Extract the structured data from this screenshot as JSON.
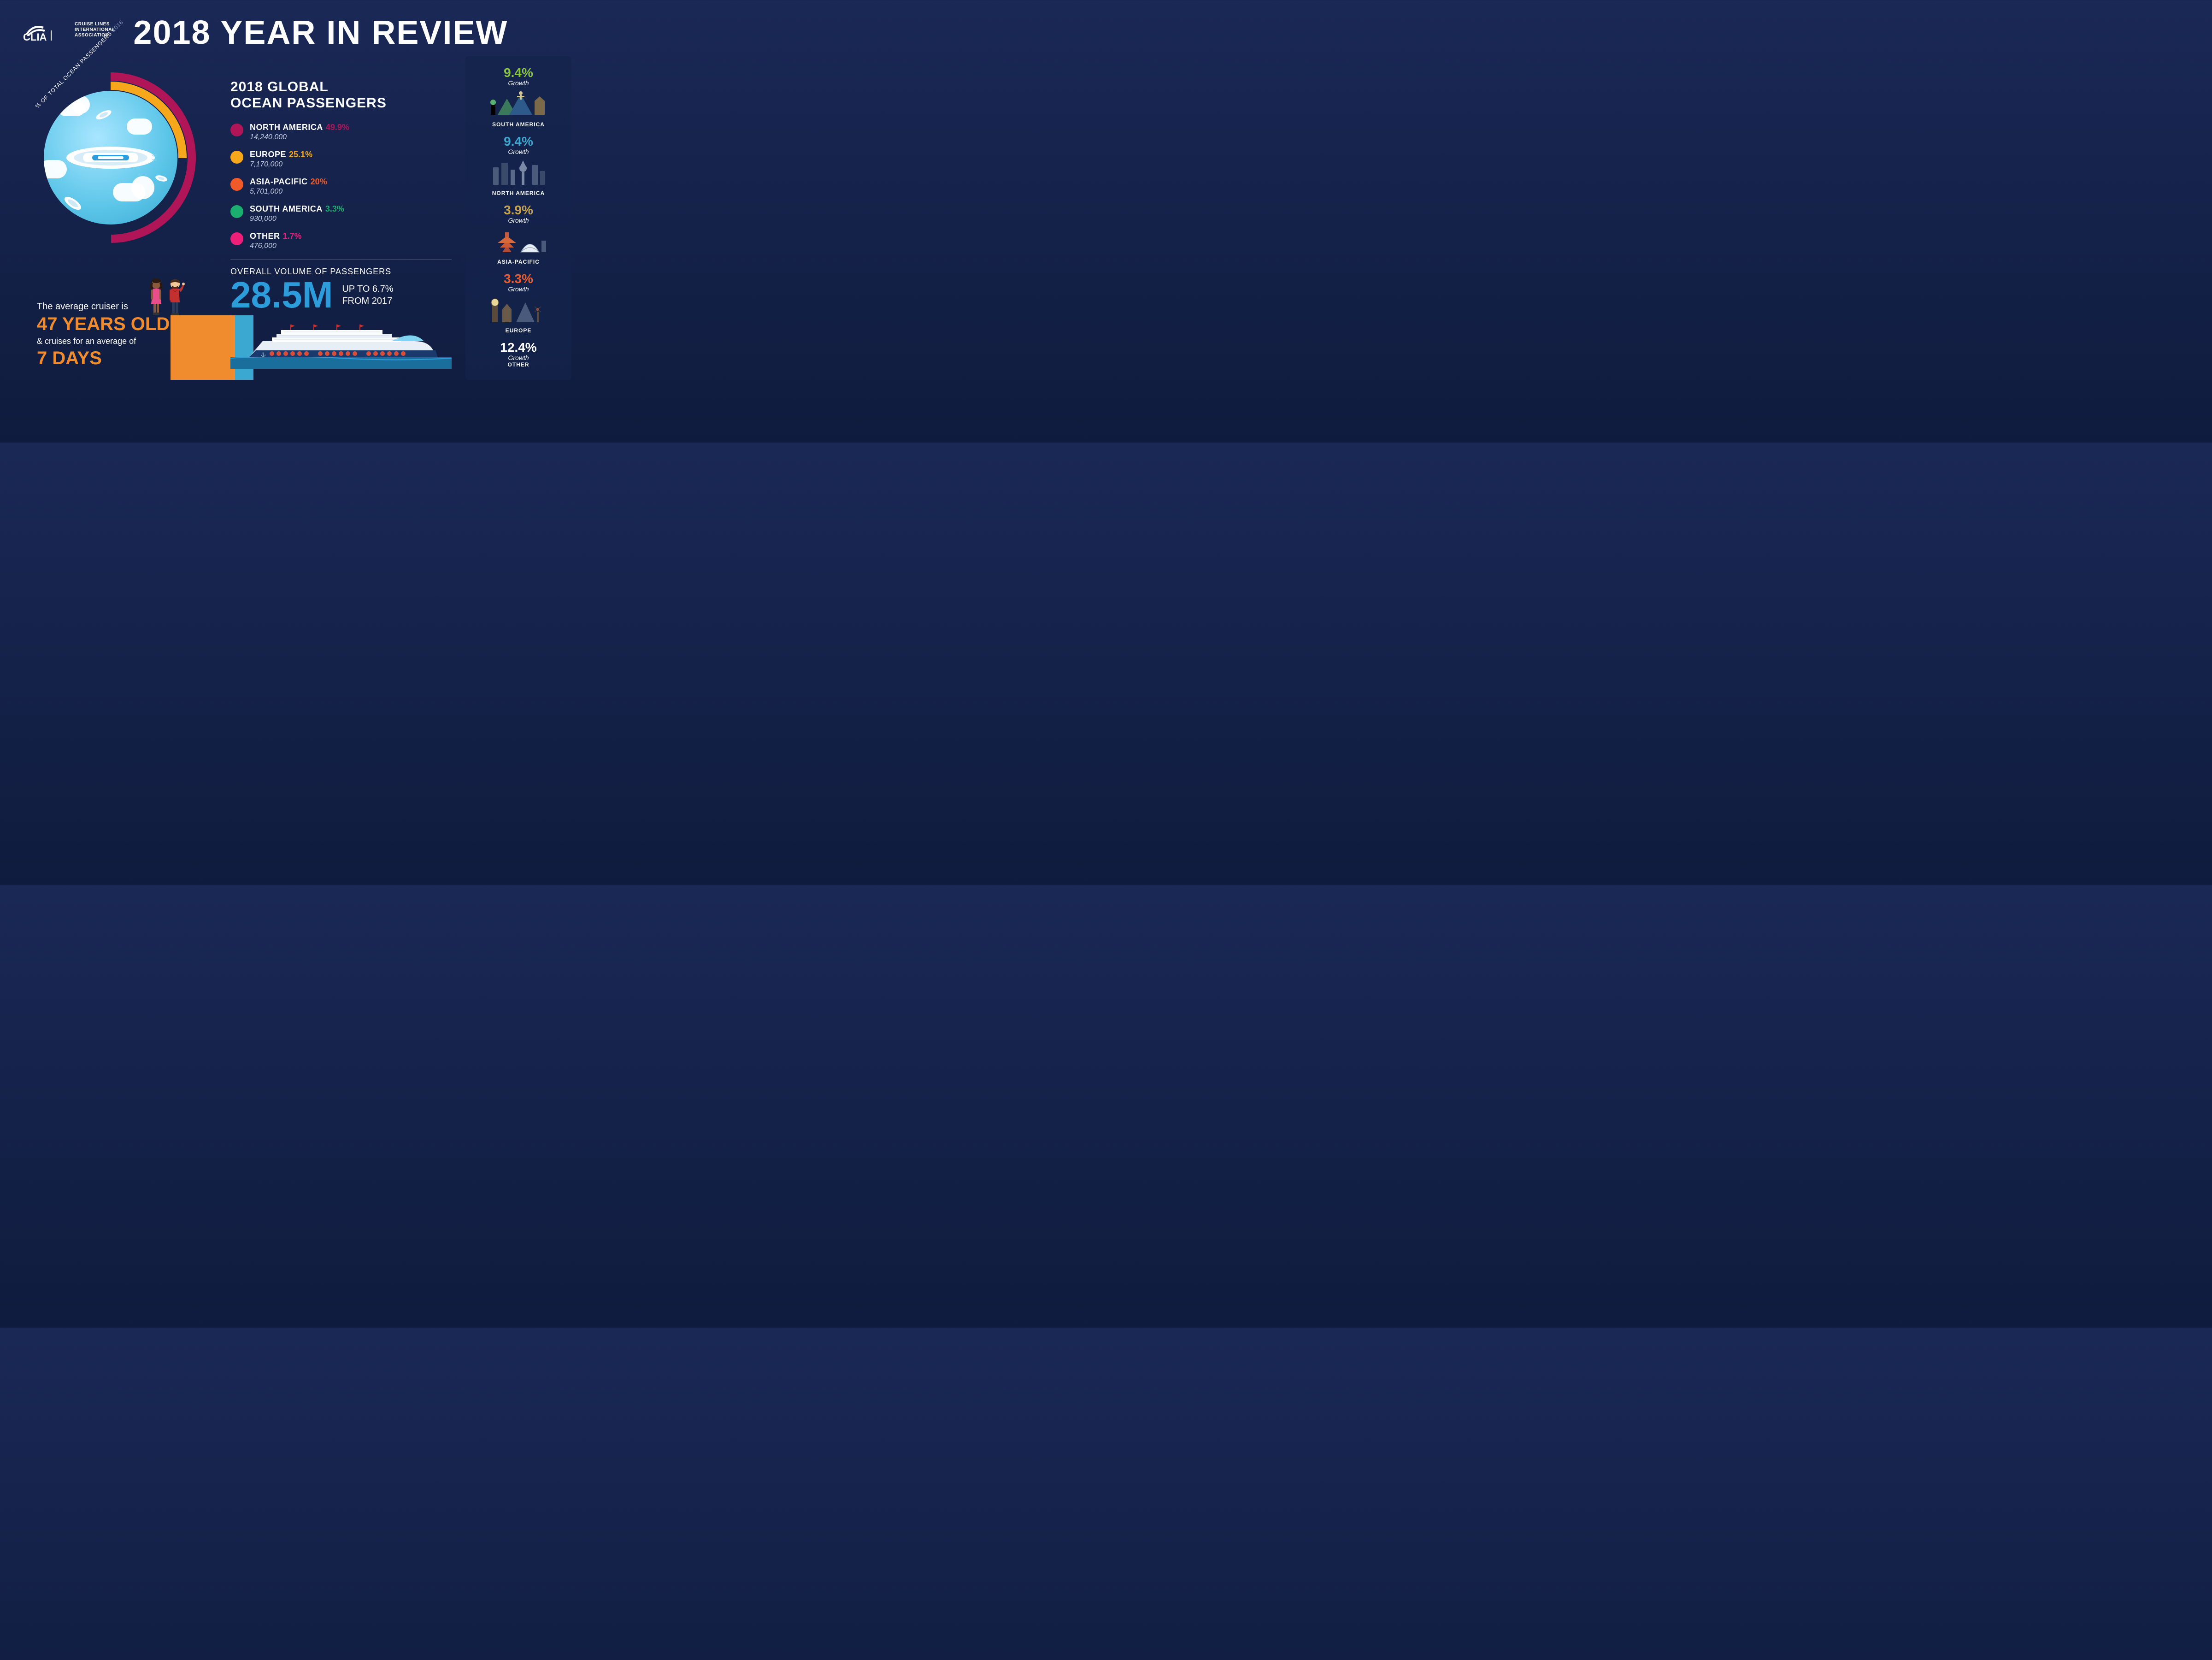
{
  "colors": {
    "bg_top": "#1a2856",
    "bg_bottom": "#0f1b3d",
    "orange": "#f08c2e",
    "blue": "#2d9cdb",
    "white": "#ffffff"
  },
  "header": {
    "logo_name": "CLIA",
    "logo_sub": "CRUISE LINES\nINTERNATIONAL\nASSOCIATION",
    "title": "2018 YEAR IN REVIEW"
  },
  "donut": {
    "label": "% OF TOTAL OCEAN PASSENGERS",
    "year": "2018",
    "background_color": "#1a2856",
    "center_gradient": [
      "#a8e6ff",
      "#5bc5e8",
      "#3aa8d0"
    ],
    "title": "2018 GLOBAL\nOCEAN PASSENGERS",
    "segments": [
      {
        "region": "NORTH AMERICA",
        "pct": "49.9%",
        "pct_val": 49.9,
        "count": "14,240,000",
        "color": "#b01657"
      },
      {
        "region": "EUROPE",
        "pct": "25.1%",
        "pct_val": 25.1,
        "count": "7,170,000",
        "color": "#f7a71c"
      },
      {
        "region": "ASIA-PACIFIC",
        "pct": "20%",
        "pct_val": 20.0,
        "count": "5,701,000",
        "color": "#f05a28"
      },
      {
        "region": "SOUTH AMERICA",
        "pct": "3.3%",
        "pct_val": 3.3,
        "count": "930,000",
        "color": "#1aae6f"
      },
      {
        "region": "OTHER",
        "pct": "1.7%",
        "pct_val": 1.7,
        "count": "476,000",
        "color": "#ec2079"
      }
    ]
  },
  "fact": {
    "line1": "The average cruiser is",
    "age": "47 YEARS OLD",
    "line2": "& cruises for an average of",
    "days": "7 DAYS"
  },
  "overall": {
    "label": "OVERALL VOLUME OF PASSENGERS",
    "big": "28.5M",
    "sub1": "UP TO 6.7%",
    "sub2": "FROM 2017"
  },
  "growth": [
    {
      "region": "SOUTH AMERICA",
      "pct": "9.4%",
      "color": "#8bc540",
      "illust": "south-america"
    },
    {
      "region": "NORTH AMERICA",
      "pct": "9.4%",
      "color": "#3aa8d0",
      "illust": "north-america"
    },
    {
      "region": "ASIA-PACIFIC",
      "pct": "3.9%",
      "color": "#c9a14a",
      "illust": "asia-pacific"
    },
    {
      "region": "EUROPE",
      "pct": "3.3%",
      "color": "#f05a28",
      "illust": "europe"
    },
    {
      "region": "OTHER",
      "pct": "12.4%",
      "color": "#ffffff",
      "illust": "other"
    }
  ],
  "growth_label": "Growth"
}
